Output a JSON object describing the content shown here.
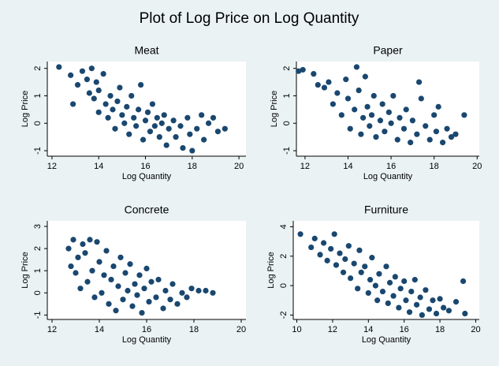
{
  "title": "Plot of Log Price on Log Quantity",
  "chart_data": [
    {
      "type": "scatter",
      "title": "Meat",
      "x_label": "Log Quantity",
      "y_label": "Log Price",
      "color": "#1a476f",
      "xlim": [
        11.8,
        20.3
      ],
      "ylim": [
        -1.2,
        2.25
      ],
      "xticks": [
        12,
        14,
        16,
        18,
        20
      ],
      "yticks": [
        -1,
        0,
        1,
        2
      ],
      "x": [
        12.3,
        12.8,
        12.9,
        13.1,
        13.3,
        13.5,
        13.6,
        13.7,
        13.8,
        13.9,
        14.0,
        14.0,
        14.2,
        14.3,
        14.4,
        14.5,
        14.6,
        14.7,
        14.8,
        14.9,
        15.0,
        15.1,
        15.2,
        15.3,
        15.4,
        15.5,
        15.6,
        15.7,
        15.8,
        15.9,
        16.0,
        16.1,
        16.2,
        16.3,
        16.4,
        16.5,
        16.6,
        16.7,
        16.8,
        16.9,
        17.0,
        17.2,
        17.3,
        17.5,
        17.6,
        17.8,
        17.9,
        18.0,
        18.2,
        18.4,
        18.5,
        18.7,
        18.9,
        19.1,
        19.4
      ],
      "values": [
        2.05,
        1.75,
        0.7,
        1.4,
        1.9,
        1.6,
        1.1,
        2.0,
        0.9,
        1.5,
        1.2,
        0.4,
        1.8,
        0.7,
        0.2,
        1.0,
        0.5,
        -0.2,
        0.8,
        1.3,
        0.3,
        0.0,
        0.6,
        -0.4,
        1.0,
        0.2,
        -0.1,
        0.5,
        1.4,
        -0.6,
        0.1,
        0.4,
        -0.3,
        0.7,
        -0.1,
        0.2,
        -0.5,
        0.0,
        0.3,
        -0.8,
        -0.2,
        0.1,
        -0.5,
        -0.1,
        -0.9,
        0.2,
        -0.4,
        -1.0,
        -0.2,
        0.3,
        -0.6,
        0.0,
        0.2,
        -0.3,
        -0.2
      ]
    },
    {
      "type": "scatter",
      "title": "Paper",
      "x_label": "Log Quantity",
      "y_label": "Log Price",
      "color": "#1a476f",
      "xlim": [
        11.6,
        20.1
      ],
      "ylim": [
        -1.2,
        2.25
      ],
      "xticks": [
        12,
        14,
        16,
        18,
        20
      ],
      "yticks": [
        -1,
        0,
        1,
        2
      ],
      "x": [
        11.7,
        11.9,
        12.4,
        12.6,
        12.9,
        13.1,
        13.3,
        13.5,
        13.7,
        13.9,
        14.0,
        14.1,
        14.3,
        14.4,
        14.5,
        14.6,
        14.7,
        14.8,
        14.9,
        15.0,
        15.1,
        15.2,
        15.3,
        15.5,
        15.6,
        15.7,
        15.9,
        16.0,
        16.1,
        16.3,
        16.4,
        16.6,
        16.7,
        16.9,
        17.0,
        17.2,
        17.3,
        17.4,
        17.6,
        17.8,
        18.0,
        18.1,
        18.2,
        18.4,
        18.6,
        18.8,
        19.0,
        19.4
      ],
      "values": [
        1.9,
        1.95,
        1.8,
        1.4,
        1.3,
        1.5,
        0.7,
        1.1,
        0.3,
        1.6,
        0.9,
        -0.2,
        0.5,
        2.05,
        1.2,
        -0.4,
        0.2,
        1.7,
        0.6,
        -0.1,
        0.3,
        1.0,
        -0.5,
        0.1,
        0.7,
        -0.3,
        0.4,
        0.0,
        1.0,
        -0.6,
        0.2,
        -0.2,
        0.5,
        -0.7,
        0.1,
        -0.4,
        1.5,
        0.9,
        -0.1,
        -0.6,
        0.3,
        -0.3,
        0.6,
        -0.7,
        -0.2,
        -0.5,
        -0.4,
        0.3
      ]
    },
    {
      "type": "scatter",
      "title": "Concrete",
      "x_label": "Log Quantity",
      "y_label": "Log Price",
      "color": "#1a476f",
      "xlim": [
        11.8,
        20.2
      ],
      "ylim": [
        -1.2,
        3.25
      ],
      "xticks": [
        12,
        14,
        16,
        18,
        20
      ],
      "yticks": [
        -1,
        0,
        1,
        2,
        3
      ],
      "x": [
        12.7,
        12.8,
        12.9,
        13.0,
        13.1,
        13.2,
        13.3,
        13.4,
        13.5,
        13.6,
        13.7,
        13.8,
        13.9,
        14.0,
        14.1,
        14.2,
        14.3,
        14.4,
        14.5,
        14.6,
        14.7,
        14.8,
        14.9,
        15.0,
        15.1,
        15.2,
        15.3,
        15.4,
        15.5,
        15.6,
        15.7,
        15.8,
        15.9,
        16.0,
        16.1,
        16.2,
        16.4,
        16.5,
        16.7,
        16.8,
        17.0,
        17.1,
        17.3,
        17.5,
        17.7,
        17.9,
        18.2,
        18.5,
        18.8
      ],
      "values": [
        2.0,
        1.2,
        2.4,
        0.9,
        1.6,
        0.2,
        2.2,
        1.8,
        0.5,
        2.4,
        1.0,
        -0.2,
        2.3,
        1.4,
        0.0,
        0.8,
        1.9,
        -0.5,
        0.6,
        1.2,
        -0.8,
        0.3,
        1.6,
        -0.3,
        0.9,
        0.1,
        1.3,
        -0.6,
        0.4,
        -0.1,
        0.8,
        -0.9,
        0.2,
        1.1,
        -0.4,
        0.5,
        -0.2,
        0.6,
        -0.7,
        0.1,
        -0.3,
        0.4,
        -0.5,
        0.0,
        -0.2,
        0.2,
        0.1,
        0.1,
        0.0
      ]
    },
    {
      "type": "scatter",
      "title": "Furniture",
      "x_label": "Log Quantity",
      "y_label": "Log Price",
      "color": "#1a476f",
      "xlim": [
        9.8,
        20.2
      ],
      "ylim": [
        -2.3,
        4.4
      ],
      "xticks": [
        10,
        12,
        14,
        16,
        18,
        20
      ],
      "yticks": [
        -2,
        0,
        2,
        4
      ],
      "x": [
        10.2,
        10.8,
        11.0,
        11.3,
        11.5,
        11.7,
        11.9,
        12.1,
        12.2,
        12.4,
        12.6,
        12.7,
        12.9,
        13.0,
        13.2,
        13.4,
        13.5,
        13.6,
        13.8,
        14.0,
        14.1,
        14.2,
        14.4,
        14.5,
        14.6,
        14.8,
        15.0,
        15.1,
        15.2,
        15.4,
        15.5,
        15.7,
        15.8,
        16.0,
        16.1,
        16.3,
        16.4,
        16.6,
        16.7,
        16.9,
        17.0,
        17.2,
        17.4,
        17.6,
        17.8,
        18.0,
        18.2,
        18.5,
        18.9,
        19.3,
        19.4
      ],
      "values": [
        3.5,
        2.6,
        3.2,
        2.1,
        2.9,
        1.7,
        2.5,
        3.5,
        1.4,
        2.2,
        0.9,
        1.8,
        2.7,
        0.5,
        1.5,
        -0.2,
        2.4,
        0.9,
        1.3,
        -0.5,
        0.4,
        1.9,
        0.0,
        -1.0,
        0.8,
        -0.4,
        1.3,
        -1.2,
        0.2,
        -0.7,
        0.6,
        -1.5,
        -0.2,
        0.3,
        -1.0,
        -1.8,
        -0.4,
        0.4,
        -1.3,
        -0.8,
        -2.0,
        -0.3,
        -1.6,
        -1.0,
        -1.9,
        -0.9,
        -1.5,
        -1.7,
        -1.1,
        0.3,
        -1.9
      ]
    }
  ]
}
